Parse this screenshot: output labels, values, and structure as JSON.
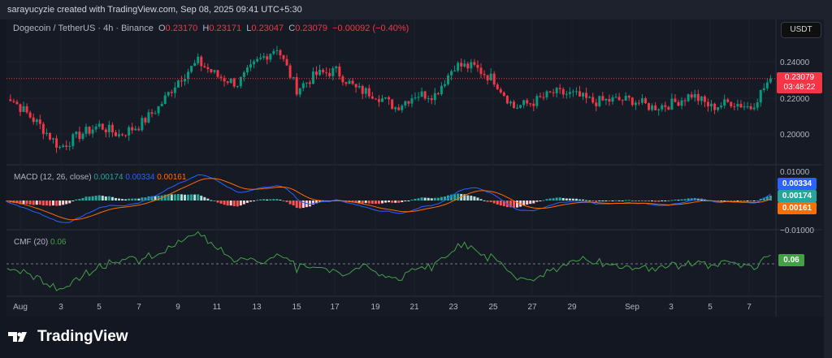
{
  "credit": "sarayucyzie created with TradingView.com, Sep 08, 2025 09:41 UTC+5:30",
  "symbol": {
    "title": "Dogecoin / TetherUS · 4h · Binance",
    "o_label": "O",
    "o": "0.23170",
    "h_label": "H",
    "h": "0.23171",
    "l_label": "L",
    "l": "0.23047",
    "c_label": "C",
    "c": "0.23079",
    "change": "−0.00092 (−0.40%)"
  },
  "currency_button": "USDT",
  "price_axis": [
    "0.24000",
    "0.22000",
    "0.20000"
  ],
  "last_price": "0.23079",
  "countdown": "03:48:22",
  "macd": {
    "title": "MACD (12, 26, close)",
    "hist": "0.00174",
    "macd": "0.00334",
    "signal": "0.00161",
    "axis": [
      "0.01000",
      "−0.01000"
    ]
  },
  "cmf": {
    "title": "CMF (20)",
    "value": "0.06"
  },
  "time_axis": [
    "Aug",
    "3",
    "5",
    "7",
    "9",
    "11",
    "13",
    "15",
    "17",
    "19",
    "21",
    "23",
    "25",
    "27",
    "29",
    "Sep",
    "3",
    "5",
    "7"
  ],
  "brand": "TradingView",
  "colors": {
    "up": "#089981",
    "down": "#f23645",
    "macd": "#2962ff",
    "signal": "#ff6d00",
    "cmf": "#43a047"
  },
  "chart_data": {
    "type": "candlestick",
    "interval": "4h",
    "ylim": [
      0.185,
      0.255
    ],
    "dates": [
      "Jul31",
      "Aug1",
      "Aug2",
      "Aug3",
      "Aug4",
      "Aug5",
      "Aug6",
      "Aug7",
      "Aug8",
      "Aug9",
      "Aug10",
      "Aug11",
      "Aug12",
      "Aug13",
      "Aug14",
      "Aug15",
      "Aug16",
      "Aug17",
      "Aug18",
      "Aug19",
      "Aug20",
      "Aug21",
      "Aug22",
      "Aug23",
      "Aug24",
      "Aug25",
      "Aug26",
      "Aug27",
      "Aug28",
      "Aug29",
      "Aug30",
      "Aug31",
      "Sep1",
      "Sep2",
      "Sep3",
      "Sep4",
      "Sep5",
      "Sep6",
      "Sep7",
      "Sep8"
    ],
    "daily_close": [
      0.225,
      0.215,
      0.205,
      0.193,
      0.2,
      0.205,
      0.2,
      0.205,
      0.215,
      0.23,
      0.24,
      0.232,
      0.228,
      0.24,
      0.248,
      0.225,
      0.233,
      0.235,
      0.225,
      0.222,
      0.215,
      0.222,
      0.222,
      0.238,
      0.237,
      0.23,
      0.215,
      0.218,
      0.223,
      0.222,
      0.218,
      0.219,
      0.219,
      0.215,
      0.217,
      0.222,
      0.215,
      0.218,
      0.215,
      0.231
    ]
  }
}
